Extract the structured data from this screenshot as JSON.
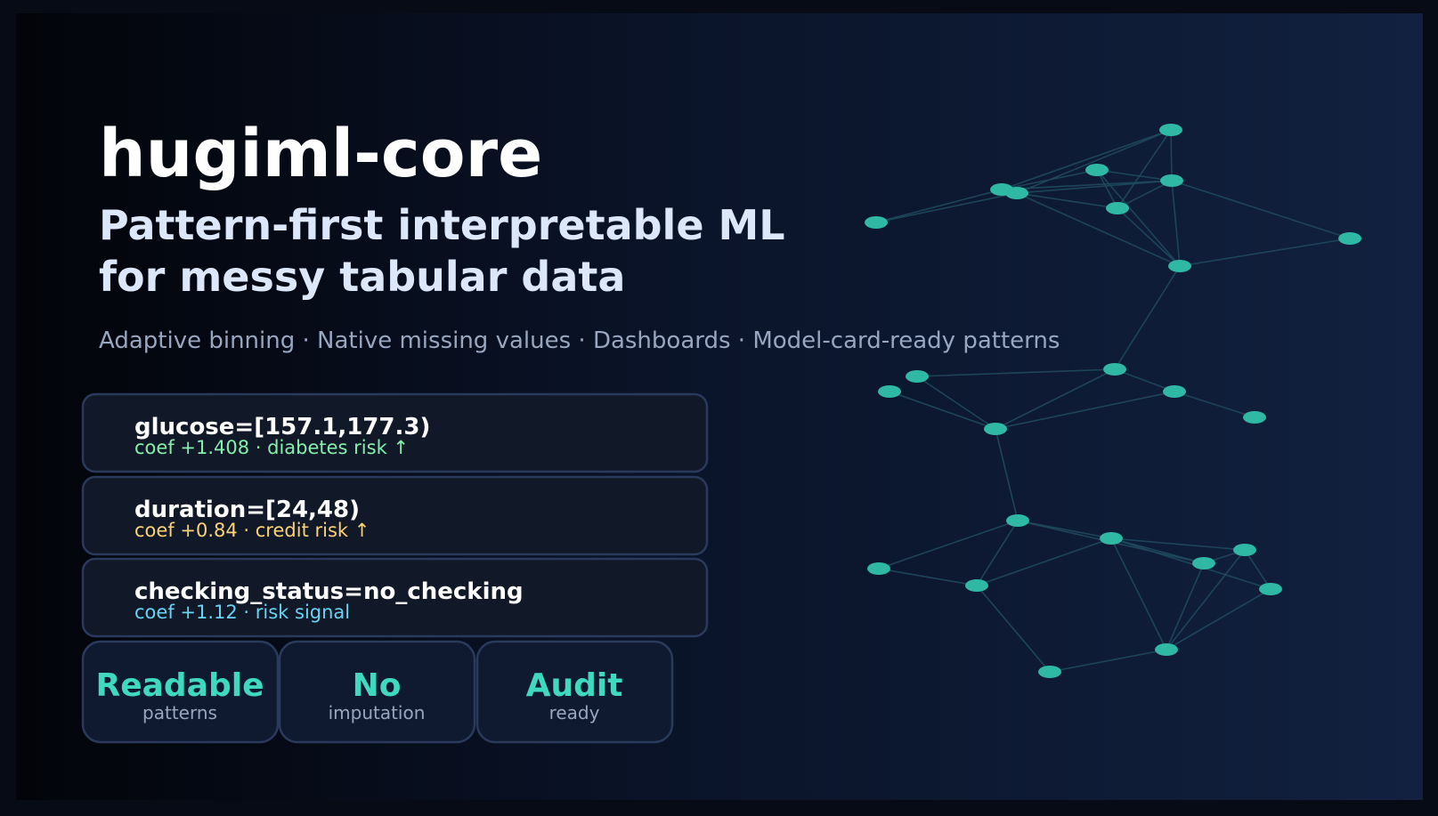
{
  "header": {
    "title": "hugiml-core",
    "subtitle": [
      "Pattern-first interpretable ML",
      "for messy tabular data"
    ],
    "tagline": "Adaptive binning · Native missing values · Dashboards · Model-card-ready patterns"
  },
  "cards": [
    {
      "pattern": "glucose=[157.1,177.3)",
      "note": "coef +1.408 · diabetes risk ↑"
    },
    {
      "pattern": "duration=[24,48)",
      "note": "coef +0.84 · credit risk ↑"
    },
    {
      "pattern": "checking_status=no_checking",
      "note": "coef +1.12 · risk signal"
    }
  ],
  "badges": [
    {
      "headline": "Readable",
      "caption": "patterns"
    },
    {
      "headline": "No",
      "caption": "imputation"
    },
    {
      "headline": "Audit",
      "caption": "ready"
    }
  ]
}
